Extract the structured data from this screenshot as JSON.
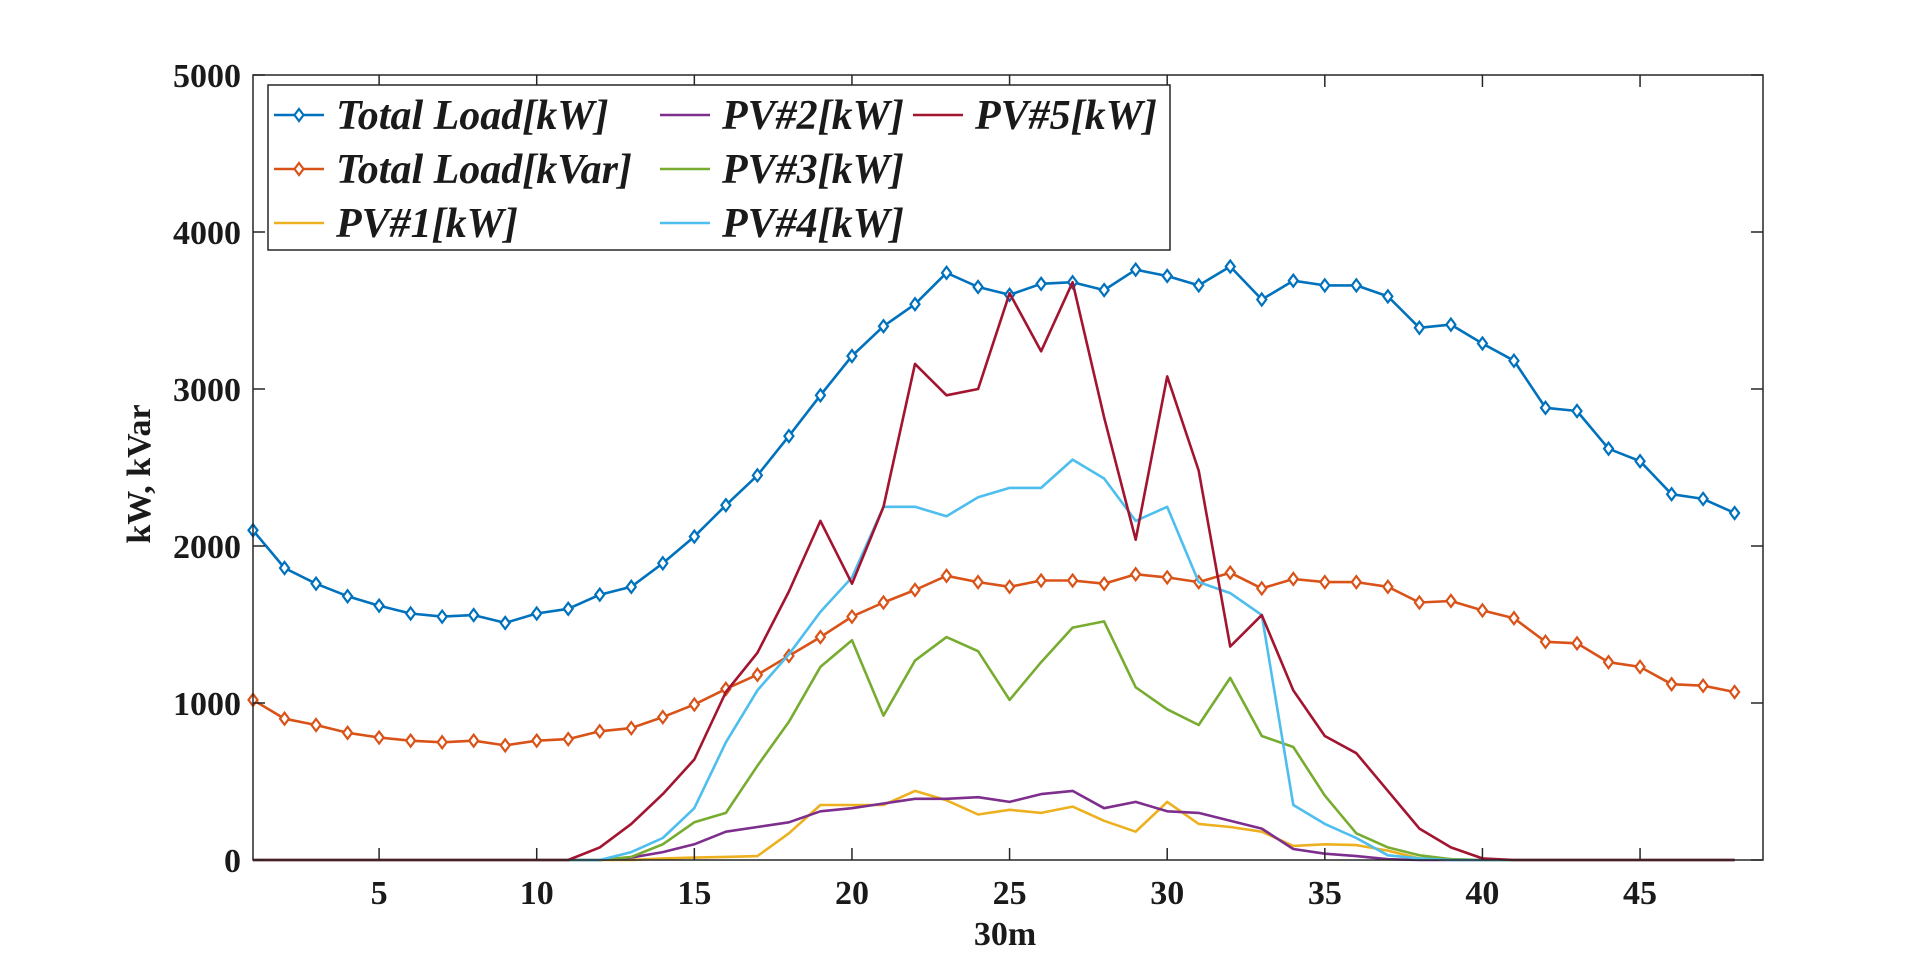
{
  "chart_data": {
    "type": "line",
    "xlabel": "30m",
    "ylabel": "kW, kVar",
    "xlim": [
      1,
      48.9
    ],
    "ylim": [
      0,
      5000
    ],
    "xticks": [
      5,
      10,
      15,
      20,
      25,
      30,
      35,
      40,
      45
    ],
    "yticks": [
      0,
      1000,
      2000,
      3000,
      4000,
      5000
    ],
    "grid": false,
    "legend_placement": "top-left",
    "x": [
      1,
      2,
      3,
      4,
      5,
      6,
      7,
      8,
      9,
      10,
      11,
      12,
      13,
      14,
      15,
      16,
      17,
      18,
      19,
      20,
      21,
      22,
      23,
      24,
      25,
      26,
      27,
      28,
      29,
      30,
      31,
      32,
      33,
      34,
      35,
      36,
      37,
      38,
      39,
      40,
      41,
      42,
      43,
      44,
      45,
      46,
      47,
      48
    ],
    "series": [
      {
        "name": "Total Load[kW]",
        "color": "#0072BD",
        "marker": "diamond",
        "values": [
          2100,
          1860,
          1760,
          1680,
          1620,
          1570,
          1550,
          1560,
          1510,
          1570,
          1600,
          1690,
          1740,
          1890,
          2060,
          2260,
          2450,
          2700,
          2960,
          3210,
          3400,
          3540,
          3740,
          3650,
          3600,
          3670,
          3680,
          3630,
          3760,
          3720,
          3660,
          3780,
          3570,
          3690,
          3660,
          3660,
          3590,
          3390,
          3410,
          3290,
          3180,
          2880,
          2860,
          2620,
          2540,
          2330,
          2300,
          2210
        ]
      },
      {
        "name": "Total Load[kVar]",
        "color": "#D95319",
        "marker": "diamond",
        "values": [
          1020,
          900,
          860,
          810,
          780,
          760,
          750,
          760,
          730,
          760,
          770,
          820,
          840,
          910,
          990,
          1090,
          1180,
          1300,
          1420,
          1550,
          1640,
          1720,
          1810,
          1770,
          1740,
          1780,
          1780,
          1760,
          1820,
          1800,
          1770,
          1830,
          1730,
          1790,
          1770,
          1770,
          1740,
          1640,
          1650,
          1590,
          1540,
          1390,
          1380,
          1260,
          1230,
          1120,
          1110,
          1070
        ]
      },
      {
        "name": "PV#1[kW]",
        "color": "#EDB120",
        "marker": "none",
        "values": [
          0,
          0,
          0,
          0,
          0,
          0,
          0,
          0,
          0,
          0,
          0,
          0,
          0,
          10,
          15,
          20,
          25,
          170,
          350,
          350,
          350,
          440,
          380,
          290,
          320,
          300,
          340,
          250,
          180,
          370,
          230,
          210,
          180,
          90,
          100,
          95,
          60,
          10,
          5,
          0,
          0,
          0,
          0,
          0,
          0,
          0,
          0,
          0
        ]
      },
      {
        "name": "PV#2[kW]",
        "color": "#7E2F8E",
        "marker": "none",
        "values": [
          0,
          0,
          0,
          0,
          0,
          0,
          0,
          0,
          0,
          0,
          0,
          0,
          15,
          50,
          100,
          180,
          210,
          240,
          310,
          330,
          360,
          390,
          390,
          400,
          370,
          420,
          440,
          330,
          370,
          310,
          300,
          250,
          200,
          70,
          40,
          25,
          5,
          0,
          0,
          0,
          0,
          0,
          0,
          0,
          0,
          0,
          0,
          0
        ]
      },
      {
        "name": "PV#3[kW]",
        "color": "#77AC30",
        "marker": "none",
        "values": [
          0,
          0,
          0,
          0,
          0,
          0,
          0,
          0,
          0,
          0,
          0,
          0,
          20,
          100,
          240,
          300,
          600,
          880,
          1230,
          1400,
          920,
          1270,
          1420,
          1330,
          1020,
          1260,
          1480,
          1520,
          1100,
          960,
          860,
          1160,
          790,
          720,
          410,
          170,
          80,
          30,
          5,
          0,
          0,
          0,
          0,
          0,
          0,
          0,
          0,
          0
        ]
      },
      {
        "name": "PV#4[kW]",
        "color": "#4DBEEE",
        "marker": "none",
        "values": [
          0,
          0,
          0,
          0,
          0,
          0,
          0,
          0,
          0,
          0,
          0,
          0,
          50,
          140,
          330,
          750,
          1080,
          1310,
          1580,
          1800,
          2250,
          2250,
          2190,
          2310,
          2370,
          2370,
          2550,
          2430,
          2160,
          2250,
          1770,
          1700,
          1560,
          350,
          230,
          140,
          30,
          10,
          0,
          0,
          0,
          0,
          0,
          0,
          0,
          0,
          0,
          0
        ]
      },
      {
        "name": "PV#5[kW]",
        "color": "#A2142F",
        "marker": "none",
        "values": [
          0,
          0,
          0,
          0,
          0,
          0,
          0,
          0,
          0,
          0,
          0,
          80,
          230,
          420,
          640,
          1070,
          1320,
          1710,
          2160,
          1760,
          2250,
          3160,
          2960,
          3000,
          3610,
          3240,
          3680,
          2820,
          2040,
          3080,
          2480,
          1360,
          1560,
          1080,
          790,
          680,
          440,
          200,
          80,
          10,
          0,
          0,
          0,
          0,
          0,
          0,
          0,
          0
        ]
      }
    ]
  }
}
